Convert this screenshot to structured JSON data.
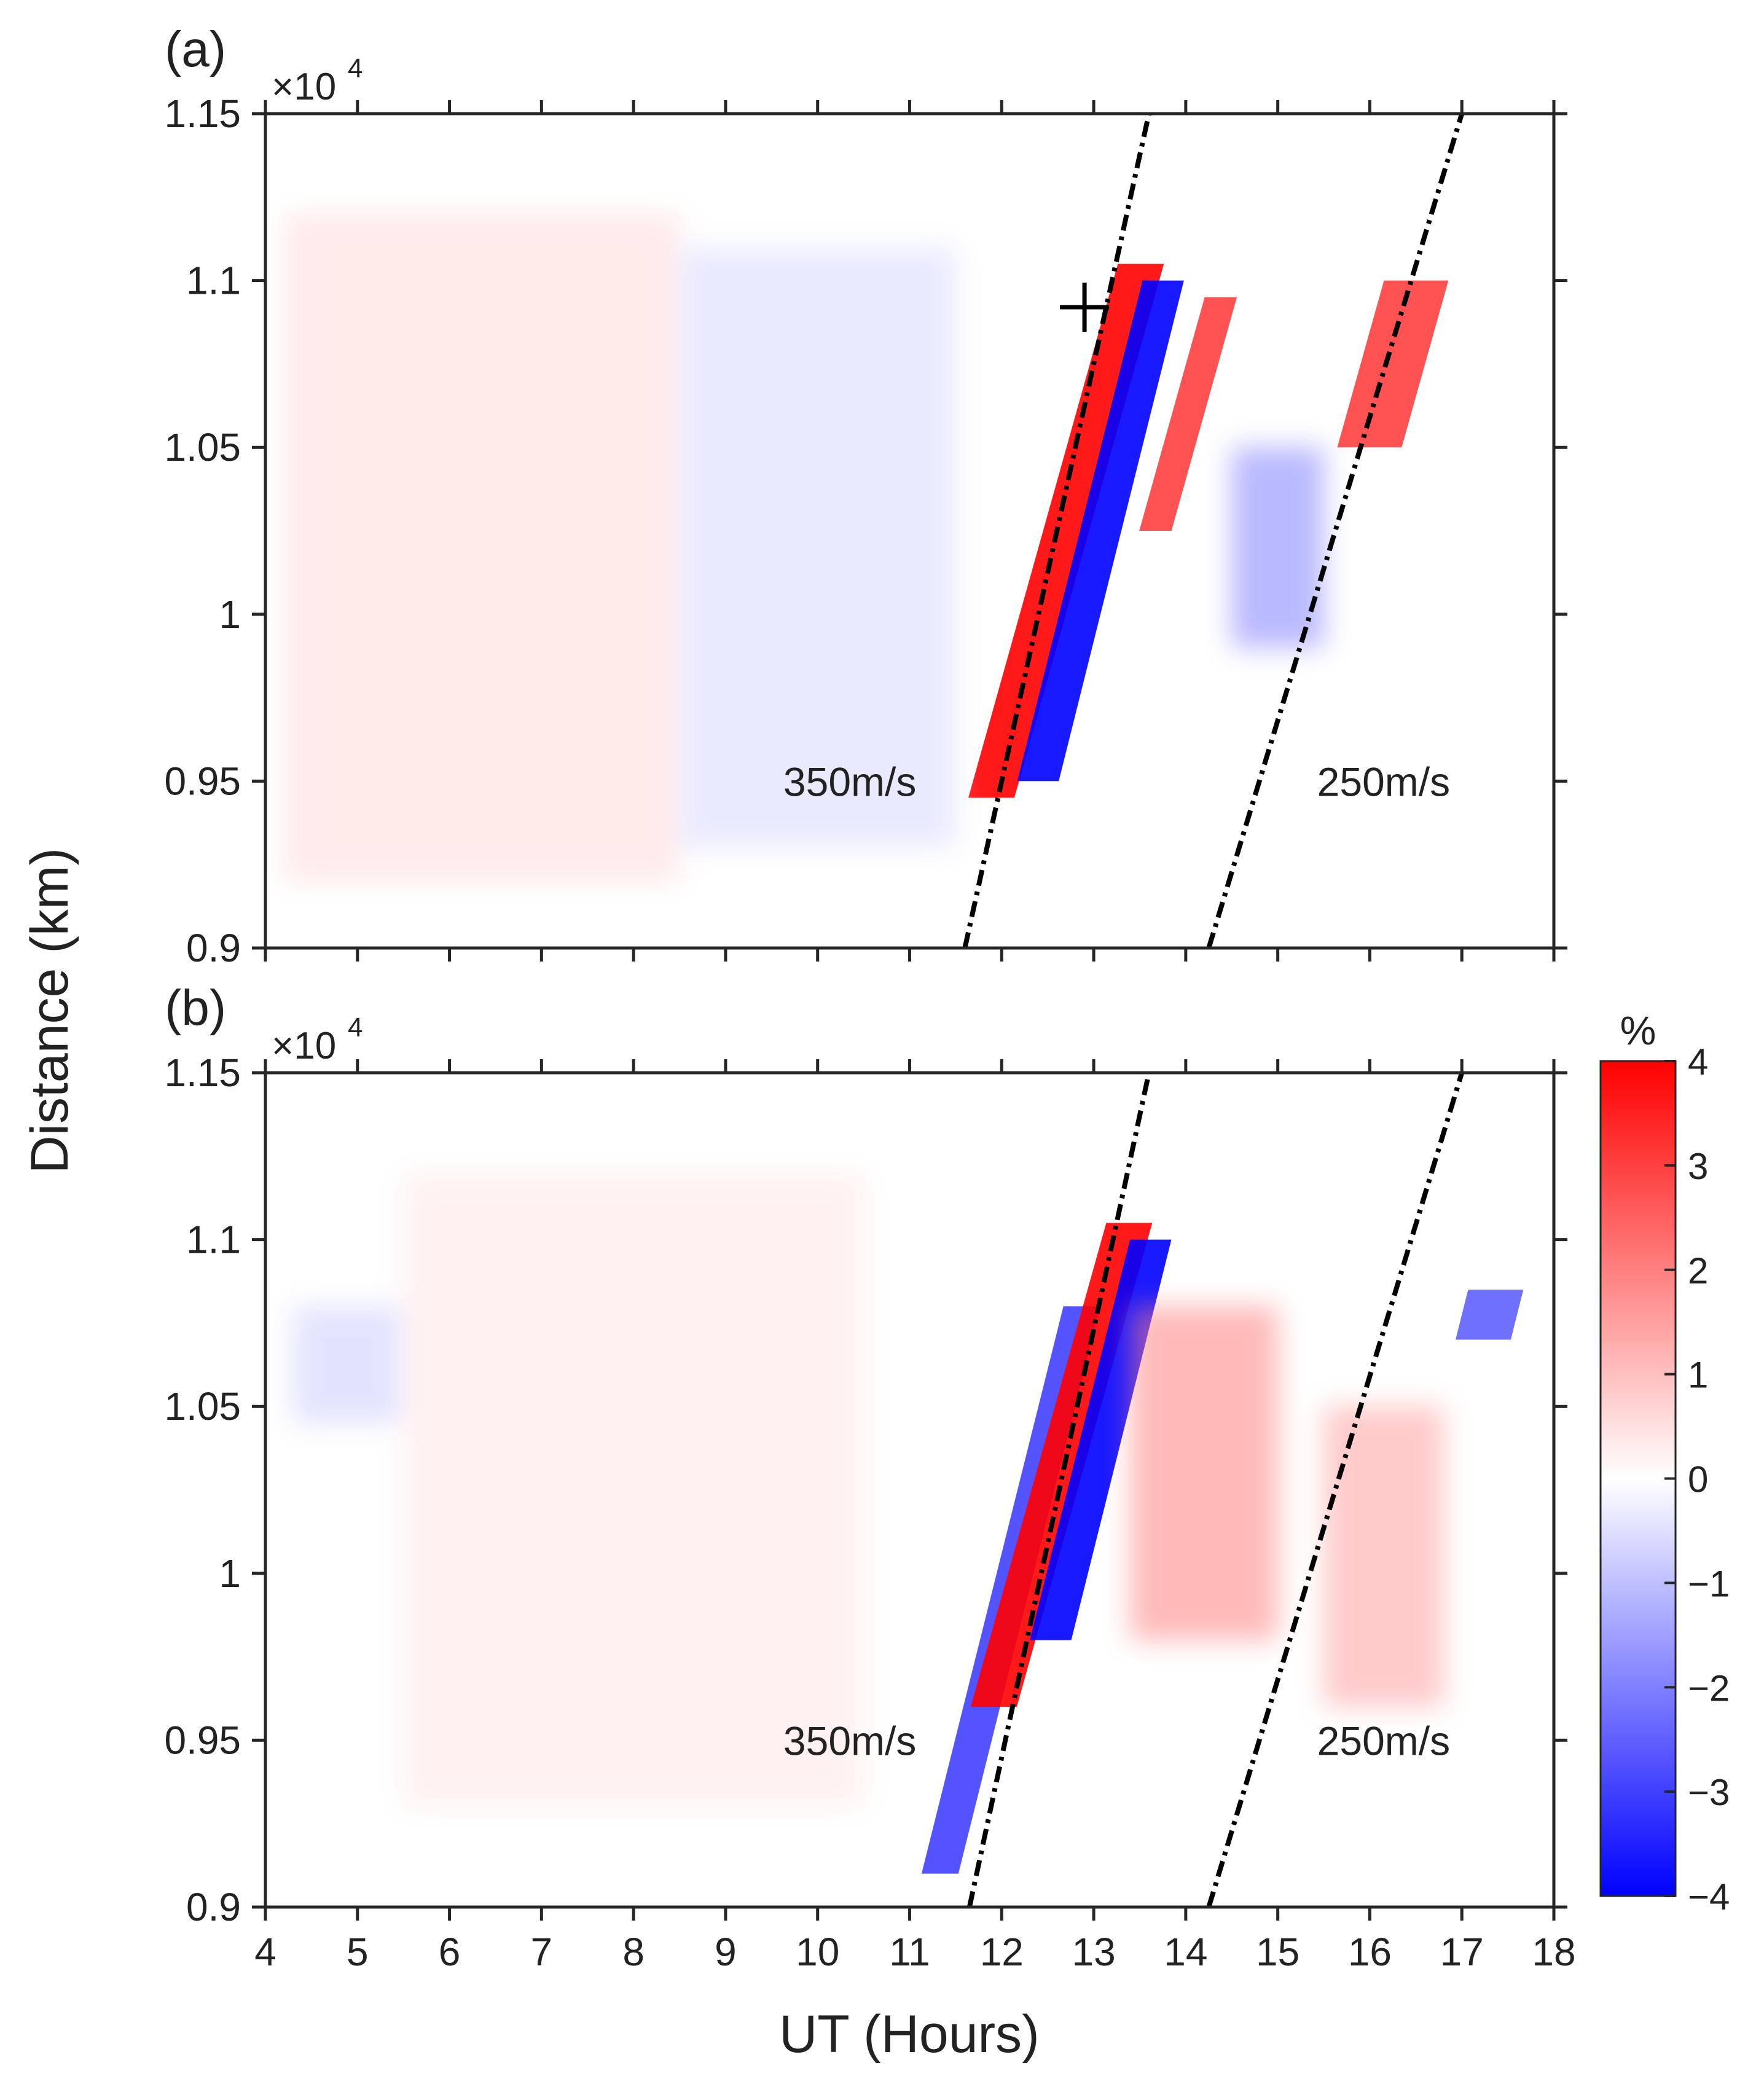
{
  "chart_data": {
    "type": "heatmap",
    "shared": {
      "xlabel": "UT (Hours)",
      "ylabel": "Distance (km)",
      "x_range": [
        4,
        18
      ],
      "y_range": [
        9000,
        11500
      ],
      "x_ticks": [
        "4",
        "5",
        "6",
        "7",
        "8",
        "9",
        "10",
        "11",
        "12",
        "13",
        "14",
        "15",
        "16",
        "17",
        "18"
      ],
      "y_ticks": [
        "0.9",
        "0.95",
        "1",
        "1.05",
        "1.1",
        "1.15"
      ],
      "y_multiplier": "×10",
      "y_multiplier_exp": "4"
    },
    "colorbar": {
      "label": "%",
      "range": [
        -4,
        4
      ],
      "ticks": [
        "4",
        "3",
        "2",
        "1",
        "0",
        "−1",
        "−2",
        "−3",
        "−4"
      ],
      "colors": {
        "positive": "#ff0000",
        "zero": "#ffffff",
        "negative": "#0000ff"
      }
    },
    "panels": [
      {
        "label": "(a)",
        "lines": [
          {
            "name": "350m/s",
            "x0": 11.6,
            "y0": 9000,
            "x1": 13.6,
            "y1": 11500
          },
          {
            "name": "250m/s",
            "x0": 14.25,
            "y0": 9000,
            "x1": 17.0,
            "y1": 11500
          }
        ],
        "annotations": [
          {
            "text": "350m/s",
            "x": 10.35,
            "y": 9500
          },
          {
            "text": "250m/s",
            "x": 16.15,
            "y": 9500
          }
        ],
        "marker": {
          "symbol": "+",
          "x": 12.9,
          "y": 10920
        },
        "features": [
          {
            "polarity": "positive",
            "x_start": 12.45,
            "x_end": 12.95,
            "y_start": 9450,
            "y_end": 11050,
            "amplitude": 4
          },
          {
            "polarity": "negative",
            "x_start": 12.85,
            "x_end": 13.3,
            "y_start": 9500,
            "y_end": 11000,
            "amplitude": -4
          },
          {
            "polarity": "positive",
            "x_start": 13.85,
            "x_end": 14.2,
            "y_start": 10250,
            "y_end": 10950,
            "amplitude": 3
          },
          {
            "polarity": "negative",
            "x_start": 14.5,
            "x_end": 15.5,
            "y_start": 9900,
            "y_end": 10500,
            "amplitude": -2
          },
          {
            "polarity": "positive",
            "x_start": 15.9,
            "x_end": 16.6,
            "y_start": 10500,
            "y_end": 11000,
            "amplitude": 3
          },
          {
            "polarity": "positive",
            "x_start": 4.2,
            "x_end": 8.5,
            "y_start": 9200,
            "y_end": 11200,
            "amplitude": 0.6
          },
          {
            "polarity": "negative",
            "x_start": 8.5,
            "x_end": 11.5,
            "y_start": 9300,
            "y_end": 11100,
            "amplitude": -0.6
          }
        ]
      },
      {
        "label": "(b)",
        "lines": [
          {
            "name": "350m/s",
            "x0": 11.65,
            "y0": 9000,
            "x1": 13.6,
            "y1": 11500
          },
          {
            "name": "250m/s",
            "x0": 14.25,
            "y0": 9000,
            "x1": 17.0,
            "y1": 11500
          }
        ],
        "annotations": [
          {
            "text": "350m/s",
            "x": 10.35,
            "y": 9500
          },
          {
            "text": "250m/s",
            "x": 16.15,
            "y": 9500
          }
        ],
        "features": [
          {
            "polarity": "negative",
            "x_start": 11.9,
            "x_end": 12.3,
            "y_start": 9100,
            "y_end": 10800,
            "amplitude": -3
          },
          {
            "polarity": "positive",
            "x_start": 12.4,
            "x_end": 12.9,
            "y_start": 9600,
            "y_end": 11050,
            "amplitude": 4
          },
          {
            "polarity": "negative",
            "x_start": 12.85,
            "x_end": 13.3,
            "y_start": 9800,
            "y_end": 11000,
            "amplitude": -4
          },
          {
            "polarity": "positive",
            "x_start": 13.4,
            "x_end": 15.0,
            "y_start": 9800,
            "y_end": 10800,
            "amplitude": 2
          },
          {
            "polarity": "positive",
            "x_start": 15.5,
            "x_end": 16.8,
            "y_start": 9600,
            "y_end": 10500,
            "amplitude": 1.5
          },
          {
            "polarity": "negative",
            "x_start": 17.0,
            "x_end": 17.6,
            "y_start": 10700,
            "y_end": 10850,
            "amplitude": -2.5
          },
          {
            "polarity": "negative",
            "x_start": 4.3,
            "x_end": 5.5,
            "y_start": 10450,
            "y_end": 10800,
            "amplitude": -0.8
          },
          {
            "polarity": "positive",
            "x_start": 5.5,
            "x_end": 10.5,
            "y_start": 9300,
            "y_end": 11200,
            "amplitude": 0.4
          }
        ]
      }
    ]
  }
}
